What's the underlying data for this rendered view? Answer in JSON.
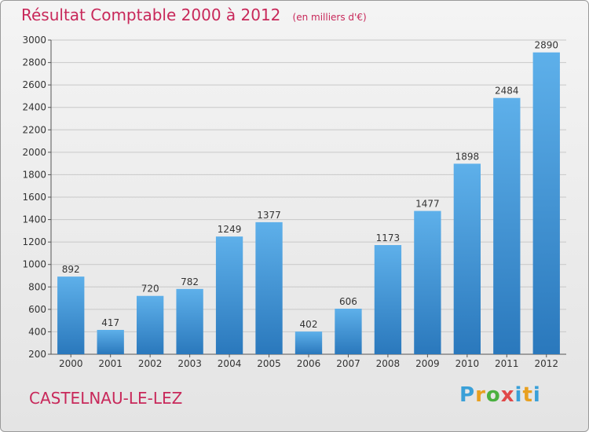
{
  "title": "Résultat Comptable 2000 à 2012",
  "unit": "(en milliers d'€)",
  "city": "CASTELNAU-LE-LEZ",
  "logo": {
    "text": "Proxiti",
    "colors": [
      "#3aa0d8",
      "#e8a020",
      "#4ab040",
      "#e04848",
      "#3aa0d8",
      "#e8a020",
      "#3aa0d8"
    ]
  },
  "colors": {
    "title": "#c8285a",
    "bar_top": "#5eb0ea",
    "bar_bottom": "#2a78bc"
  },
  "chart_data": {
    "type": "bar",
    "categories": [
      "2000",
      "2001",
      "2002",
      "2003",
      "2004",
      "2005",
      "2006",
      "2007",
      "2008",
      "2009",
      "2010",
      "2011",
      "2012"
    ],
    "values": [
      892,
      417,
      720,
      782,
      1249,
      1377,
      402,
      606,
      1173,
      1477,
      1898,
      2484,
      2890
    ],
    "ylim": [
      200,
      3000
    ],
    "yticks": [
      200,
      400,
      600,
      800,
      1000,
      1200,
      1400,
      1600,
      1800,
      2000,
      2200,
      2400,
      2600,
      2800,
      3000
    ],
    "grid": true,
    "data_labels": true
  }
}
